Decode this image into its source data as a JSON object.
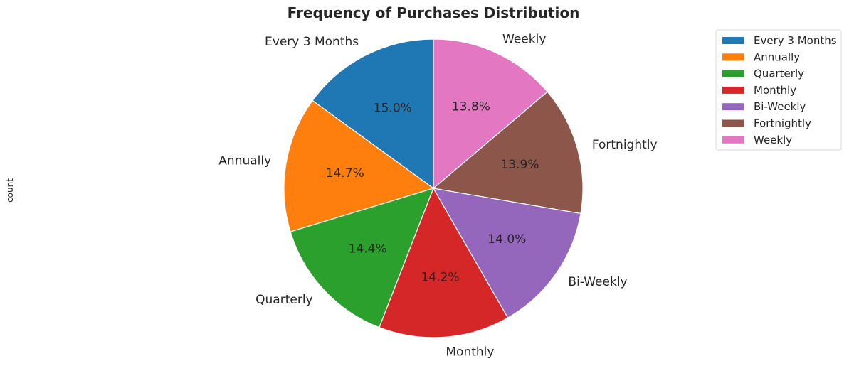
{
  "chart_data": {
    "type": "pie",
    "title": "Frequency of Purchases Distribution",
    "ylabel": "count",
    "start_angle_deg": 90,
    "direction": "counterclockwise",
    "legend_position": "upper-right",
    "slices": [
      {
        "label": "Every 3 Months",
        "percent": 15.0,
        "pct_text": "15.0%",
        "color": "#1f77b4"
      },
      {
        "label": "Annually",
        "percent": 14.7,
        "pct_text": "14.7%",
        "color": "#ff7f0e"
      },
      {
        "label": "Quarterly",
        "percent": 14.4,
        "pct_text": "14.4%",
        "color": "#2ca02c"
      },
      {
        "label": "Monthly",
        "percent": 14.2,
        "pct_text": "14.2%",
        "color": "#d62728"
      },
      {
        "label": "Bi-Weekly",
        "percent": 14.0,
        "pct_text": "14.0%",
        "color": "#9467bd"
      },
      {
        "label": "Fortnightly",
        "percent": 13.9,
        "pct_text": "13.9%",
        "color": "#8c564b"
      },
      {
        "label": "Weekly",
        "percent": 13.8,
        "pct_text": "13.8%",
        "color": "#e377c2"
      }
    ]
  }
}
